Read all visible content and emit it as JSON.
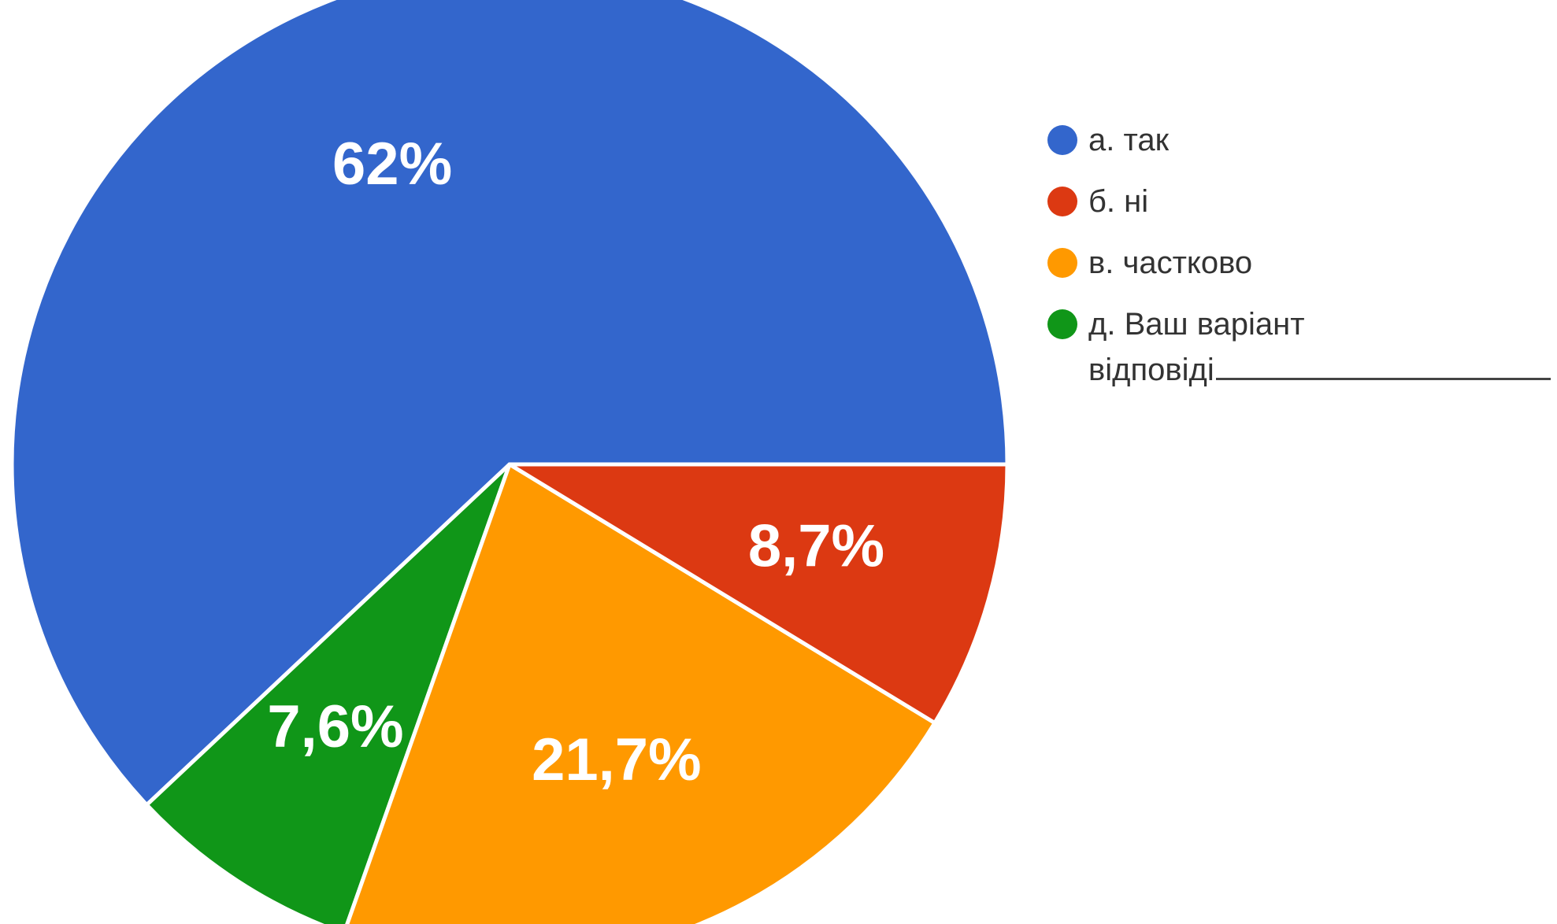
{
  "chart_data": {
    "type": "pie",
    "title": "",
    "legend_position": "right",
    "start_angle_deg": 0,
    "direction": "counterclockwise",
    "slices": [
      {
        "name": "а. так",
        "value": 62,
        "label": "62%",
        "color": "#3366cc"
      },
      {
        "name": "д. Ваш варіант відповіді",
        "name_line1": "д. Ваш варіант",
        "name_line2": "відповіді",
        "value": 7.6,
        "label": "7,6%",
        "color": "#109618"
      },
      {
        "name": "в. частково",
        "value": 21.7,
        "label": "21,7%",
        "color": "#ff9900"
      },
      {
        "name": "б. ні",
        "value": 8.7,
        "label": "8,7%",
        "color": "#dc3912"
      }
    ],
    "legend": [
      {
        "name": "а. так",
        "color": "#3366cc"
      },
      {
        "name": "б. ні",
        "color": "#dc3912"
      },
      {
        "name": "в. частково",
        "color": "#ff9900"
      },
      {
        "name_line1": "д. Ваш варіант",
        "name_line2": "відповіді",
        "color": "#109618"
      }
    ]
  }
}
